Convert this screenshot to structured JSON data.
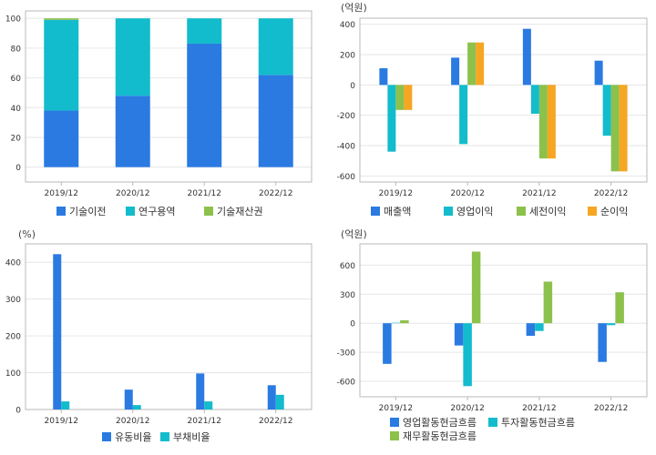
{
  "colors": {
    "blue": "#2a7ae2",
    "cyan": "#13bccc",
    "green": "#8cc14b",
    "orange": "#f5a623",
    "grid": "#e6e6e6",
    "frame": "#b8b8b8",
    "tick_text": "#333333"
  },
  "chart_data": [
    {
      "type": "bar",
      "stacked": true,
      "unit": "",
      "categories": [
        "2019/12",
        "2020/12",
        "2021/12",
        "2022/12"
      ],
      "ylim": [
        -10,
        105
      ],
      "yticks": [
        "0",
        "20",
        "40",
        "60",
        "80",
        "100"
      ],
      "grid": true,
      "legend_position": "bottom",
      "series": [
        {
          "name": "기술이전",
          "color": "#2a7ae2",
          "values": [
            38,
            48,
            83,
            62
          ]
        },
        {
          "name": "연구용역",
          "color": "#13bccc",
          "values": [
            61,
            52,
            17,
            38
          ]
        },
        {
          "name": "기술재산권",
          "color": "#8cc14b",
          "values": [
            1,
            0,
            0,
            0
          ]
        }
      ]
    },
    {
      "type": "bar",
      "stacked": false,
      "unit": "(억원)",
      "categories": [
        "2019/12",
        "2020/12",
        "2021/12",
        "2022/12"
      ],
      "ylim": [
        -640,
        440
      ],
      "yticks": [
        "-600",
        "-400",
        "-200",
        "0",
        "200",
        "400"
      ],
      "grid": true,
      "legend_position": "bottom",
      "series": [
        {
          "name": "매출액",
          "color": "#2a7ae2",
          "values": [
            110,
            180,
            370,
            160
          ]
        },
        {
          "name": "영업이익",
          "color": "#13bccc",
          "values": [
            -440,
            -390,
            -190,
            -335
          ]
        },
        {
          "name": "세전이익",
          "color": "#8cc14b",
          "values": [
            -165,
            280,
            -485,
            -570
          ]
        },
        {
          "name": "순이익",
          "color": "#f5a623",
          "values": [
            -165,
            280,
            -485,
            -570
          ]
        }
      ]
    },
    {
      "type": "bar",
      "stacked": false,
      "unit": "(%)",
      "categories": [
        "2019/12",
        "2020/12",
        "2021/12",
        "2022/12"
      ],
      "ylim": [
        0,
        450
      ],
      "yticks": [
        "0",
        "100",
        "200",
        "300",
        "400"
      ],
      "grid": true,
      "legend_position": "bottom",
      "series": [
        {
          "name": "유동비율",
          "color": "#2a7ae2",
          "values": [
            422,
            54,
            98,
            66
          ]
        },
        {
          "name": "부채비율",
          "color": "#13bccc",
          "values": [
            22,
            12,
            22,
            40
          ]
        }
      ]
    },
    {
      "type": "bar",
      "stacked": false,
      "unit": "(억원)",
      "categories": [
        "2019/12",
        "2020/12",
        "2021/12",
        "2022/12"
      ],
      "ylim": [
        -760,
        820
      ],
      "yticks": [
        "-600",
        "-300",
        "0",
        "300",
        "600"
      ],
      "grid": true,
      "legend_position": "bottom",
      "series": [
        {
          "name": "영업활동현금흐름",
          "color": "#2a7ae2",
          "values": [
            -420,
            -230,
            -130,
            -400
          ]
        },
        {
          "name": "투자활동현금흐름",
          "color": "#13bccc",
          "values": [
            5,
            -650,
            -80,
            -20
          ]
        },
        {
          "name": "재무활동현금흐름",
          "color": "#8cc14b",
          "values": [
            30,
            740,
            430,
            320
          ]
        }
      ]
    }
  ]
}
